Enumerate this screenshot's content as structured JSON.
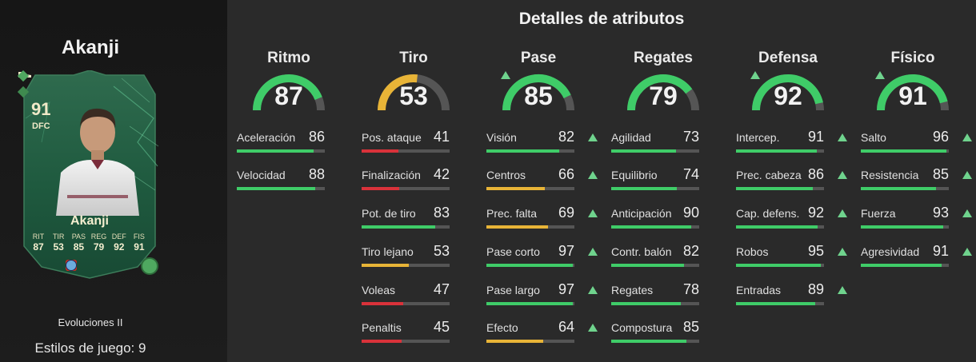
{
  "player": {
    "name": "Akanji",
    "rating": "91",
    "position": "DFC",
    "card_name": "Akanji",
    "card_stats": [
      {
        "label": "RIT",
        "value": "87"
      },
      {
        "label": "TIR",
        "value": "53"
      },
      {
        "label": "PAS",
        "value": "85"
      },
      {
        "label": "REG",
        "value": "79"
      },
      {
        "label": "DEF",
        "value": "92"
      },
      {
        "label": "FIS",
        "value": "91"
      }
    ],
    "evolution": "Evoluciones II",
    "playstyles": "Estilos de juego: 9"
  },
  "title": "Detalles de atributos",
  "colors": {
    "green": "#3fcc68",
    "yellow": "#e8b437",
    "red": "#d9323a",
    "track": "#555555",
    "arrow": "#6fd38d"
  },
  "categories": [
    {
      "name": "Ritmo",
      "value": 87,
      "color": "green",
      "arrow": false,
      "attrs": [
        {
          "name": "Aceleración",
          "value": 86,
          "color": "green",
          "arrow": false
        },
        {
          "name": "Velocidad",
          "value": 88,
          "color": "green",
          "arrow": false
        }
      ]
    },
    {
      "name": "Tiro",
      "value": 53,
      "color": "yellow",
      "arrow": false,
      "attrs": [
        {
          "name": "Pos. ataque",
          "value": 41,
          "color": "red",
          "arrow": false
        },
        {
          "name": "Finalización",
          "value": 42,
          "color": "red",
          "arrow": false
        },
        {
          "name": "Pot. de tiro",
          "value": 83,
          "color": "green",
          "arrow": false
        },
        {
          "name": "Tiro lejano",
          "value": 53,
          "color": "yellow",
          "arrow": false
        },
        {
          "name": "Voleas",
          "value": 47,
          "color": "red",
          "arrow": false
        },
        {
          "name": "Penaltis",
          "value": 45,
          "color": "red",
          "arrow": false
        }
      ]
    },
    {
      "name": "Pase",
      "value": 85,
      "color": "green",
      "arrow": true,
      "attrs": [
        {
          "name": "Visión",
          "value": 82,
          "color": "green",
          "arrow": true
        },
        {
          "name": "Centros",
          "value": 66,
          "color": "yellow",
          "arrow": true
        },
        {
          "name": "Prec. falta",
          "value": 69,
          "color": "yellow",
          "arrow": true
        },
        {
          "name": "Pase corto",
          "value": 97,
          "color": "green",
          "arrow": true
        },
        {
          "name": "Pase largo",
          "value": 97,
          "color": "green",
          "arrow": true
        },
        {
          "name": "Efecto",
          "value": 64,
          "color": "yellow",
          "arrow": true
        }
      ]
    },
    {
      "name": "Regates",
      "value": 79,
      "color": "green",
      "arrow": false,
      "attrs": [
        {
          "name": "Agilidad",
          "value": 73,
          "color": "green",
          "arrow": false
        },
        {
          "name": "Equilibrio",
          "value": 74,
          "color": "green",
          "arrow": false
        },
        {
          "name": "Anticipación",
          "value": 90,
          "color": "green",
          "arrow": false
        },
        {
          "name": "Contr. balón",
          "value": 82,
          "color": "green",
          "arrow": false
        },
        {
          "name": "Regates",
          "value": 78,
          "color": "green",
          "arrow": false
        },
        {
          "name": "Compostura",
          "value": 85,
          "color": "green",
          "arrow": false
        }
      ]
    },
    {
      "name": "Defensa",
      "value": 92,
      "color": "green",
      "arrow": true,
      "attrs": [
        {
          "name": "Intercep.",
          "value": 91,
          "color": "green",
          "arrow": true
        },
        {
          "name": "Prec. cabeza",
          "value": 86,
          "color": "green",
          "arrow": true
        },
        {
          "name": "Cap. defens.",
          "value": 92,
          "color": "green",
          "arrow": true
        },
        {
          "name": "Robos",
          "value": 95,
          "color": "green",
          "arrow": true
        },
        {
          "name": "Entradas",
          "value": 89,
          "color": "green",
          "arrow": true
        }
      ]
    },
    {
      "name": "Físico",
      "value": 91,
      "color": "green",
      "arrow": true,
      "attrs": [
        {
          "name": "Salto",
          "value": 96,
          "color": "green",
          "arrow": true
        },
        {
          "name": "Resistencia",
          "value": 85,
          "color": "green",
          "arrow": true
        },
        {
          "name": "Fuerza",
          "value": 93,
          "color": "green",
          "arrow": true
        },
        {
          "name": "Agresividad",
          "value": 91,
          "color": "green",
          "arrow": true
        }
      ]
    }
  ]
}
